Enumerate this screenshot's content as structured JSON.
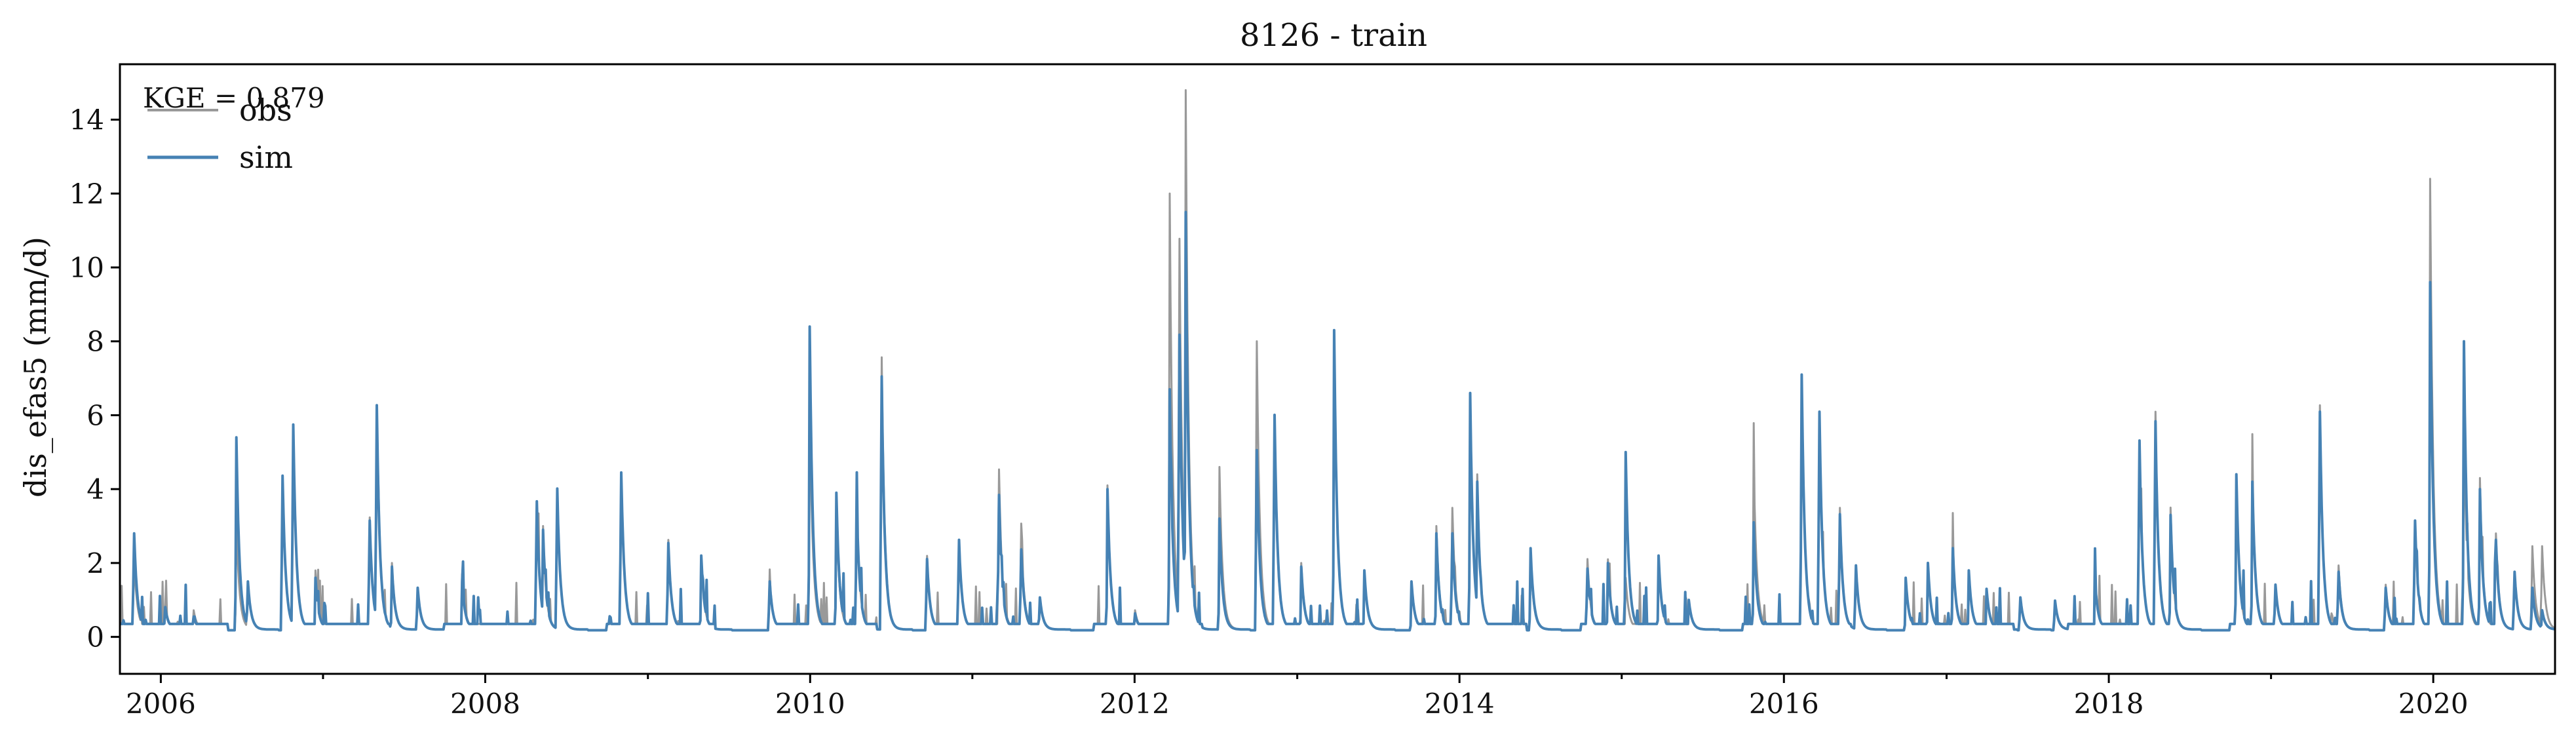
{
  "chart_data": {
    "type": "line",
    "title": "8126 - train",
    "xlabel": "",
    "ylabel": "dis_efas5 (mm/d)",
    "annotation": "KGE = 0.879",
    "xlim": [
      "2005-10-01",
      "2020-10-01"
    ],
    "ylim": [
      -1,
      15.5
    ],
    "xticks": [
      "2006",
      "2008",
      "2010",
      "2012",
      "2014",
      "2016",
      "2018",
      "2020"
    ],
    "yticks": [
      "0",
      "2",
      "4",
      "6",
      "8",
      "10",
      "12",
      "14"
    ],
    "legend": {
      "placement": "top-left",
      "entries": [
        "obs",
        "sim"
      ]
    },
    "grid": false,
    "colors": {
      "obs": "#999999",
      "sim": "#4682b4"
    },
    "peaks": {
      "date": [
        "2005-11-01",
        "2006-01-10",
        "2006-03-15",
        "2006-06-20",
        "2006-07-15",
        "2006-10-01",
        "2006-10-25",
        "2006-12-15",
        "2007-04-15",
        "2007-05-01",
        "2007-06-05",
        "2007-08-01",
        "2007-11-10",
        "2008-04-25",
        "2008-05-10",
        "2008-06-10",
        "2008-11-01",
        "2009-02-15",
        "2009-05-01",
        "2009-10-01",
        "2009-12-31",
        "2010-03-01",
        "2010-04-15",
        "2010-06-10",
        "2010-09-20",
        "2010-12-01",
        "2011-03-01",
        "2011-04-20",
        "2011-06-01",
        "2011-11-01",
        "2012-01-01",
        "2012-03-20",
        "2012-04-10",
        "2012-04-25",
        "2012-05-01",
        "2012-07-10",
        "2012-10-01",
        "2012-11-10",
        "2013-01-10",
        "2013-03-25",
        "2013-06-01",
        "2013-09-15",
        "2013-11-10",
        "2013-12-15",
        "2014-01-25",
        "2014-02-10",
        "2014-06-10",
        "2014-10-15",
        "2014-12-01",
        "2015-01-10",
        "2015-03-25",
        "2015-06-01",
        "2015-10-25",
        "2016-02-10",
        "2016-03-20",
        "2016-05-05",
        "2016-06-10",
        "2016-10-01",
        "2016-11-20",
        "2017-01-15",
        "2017-02-20",
        "2017-04-01",
        "2017-06-15",
        "2017-09-01",
        "2017-12-01",
        "2018-03-10",
        "2018-04-15",
        "2018-05-20",
        "2018-10-15",
        "2018-11-20",
        "2019-01-10",
        "2019-04-20",
        "2019-06-01",
        "2019-09-15",
        "2019-11-20",
        "2019-12-25",
        "2020-03-10",
        "2020-04-15",
        "2020-05-20",
        "2020-07-01",
        "2020-08-10",
        "2020-09-01"
      ],
      "obs": [
        2.4,
        1.0,
        0.8,
        3.1,
        1.7,
        5.0,
        6.6,
        1.8,
        3.7,
        7.2,
        2.0,
        1.5,
        1.7,
        4.2,
        3.0,
        4.5,
        5.1,
        3.0,
        2.2,
        1.8,
        6.4,
        3.5,
        4.0,
        8.7,
        2.5,
        3.0,
        5.2,
        3.1,
        1.2,
        4.1,
        0.8,
        12.0,
        12.4,
        14.8,
        3.0,
        4.6,
        9.2,
        6.5,
        2.0,
        8.3,
        1.8,
        1.5,
        3.0,
        4.0,
        6.6,
        4.4,
        2.2,
        2.4,
        2.1,
        1.6,
        2.2,
        1.0,
        4.7,
        6.9,
        6.8,
        4.0,
        2.2,
        1.6,
        2.0,
        2.4,
        1.8,
        1.3,
        1.2,
        1.1,
        1.6,
        6.1,
        7.0,
        3.5,
        4.3,
        4.4,
        1.6,
        7.2,
        2.2,
        1.6,
        3.6,
        12.4,
        5.9,
        4.3,
        3.2,
        2.0,
        2.8,
        2.8
      ],
      "sim": [
        3.2,
        0.9,
        0.6,
        5.4,
        1.7,
        5.0,
        6.6,
        1.6,
        3.6,
        7.2,
        1.9,
        1.5,
        1.5,
        4.2,
        2.9,
        4.6,
        5.1,
        2.9,
        2.2,
        1.7,
        8.4,
        3.9,
        4.0,
        8.1,
        2.4,
        3.0,
        4.4,
        2.7,
        1.2,
        4.0,
        0.7,
        6.7,
        9.4,
        11.5,
        2.6,
        3.2,
        5.8,
        6.9,
        1.9,
        8.3,
        1.8,
        1.5,
        2.8,
        3.2,
        6.6,
        4.2,
        2.4,
        2.1,
        2.0,
        5.0,
        2.2,
        1.0,
        3.1,
        7.1,
        7.0,
        3.8,
        2.2,
        1.6,
        2.0,
        2.4,
        1.8,
        1.3,
        1.2,
        1.1,
        1.5,
        6.1,
        6.7,
        3.3,
        4.4,
        4.2,
        1.6,
        7.0,
        2.0,
        1.5,
        3.6,
        9.6,
        8.0,
        4.0,
        3.0,
        2.0,
        1.5,
        0.8
      ]
    }
  }
}
